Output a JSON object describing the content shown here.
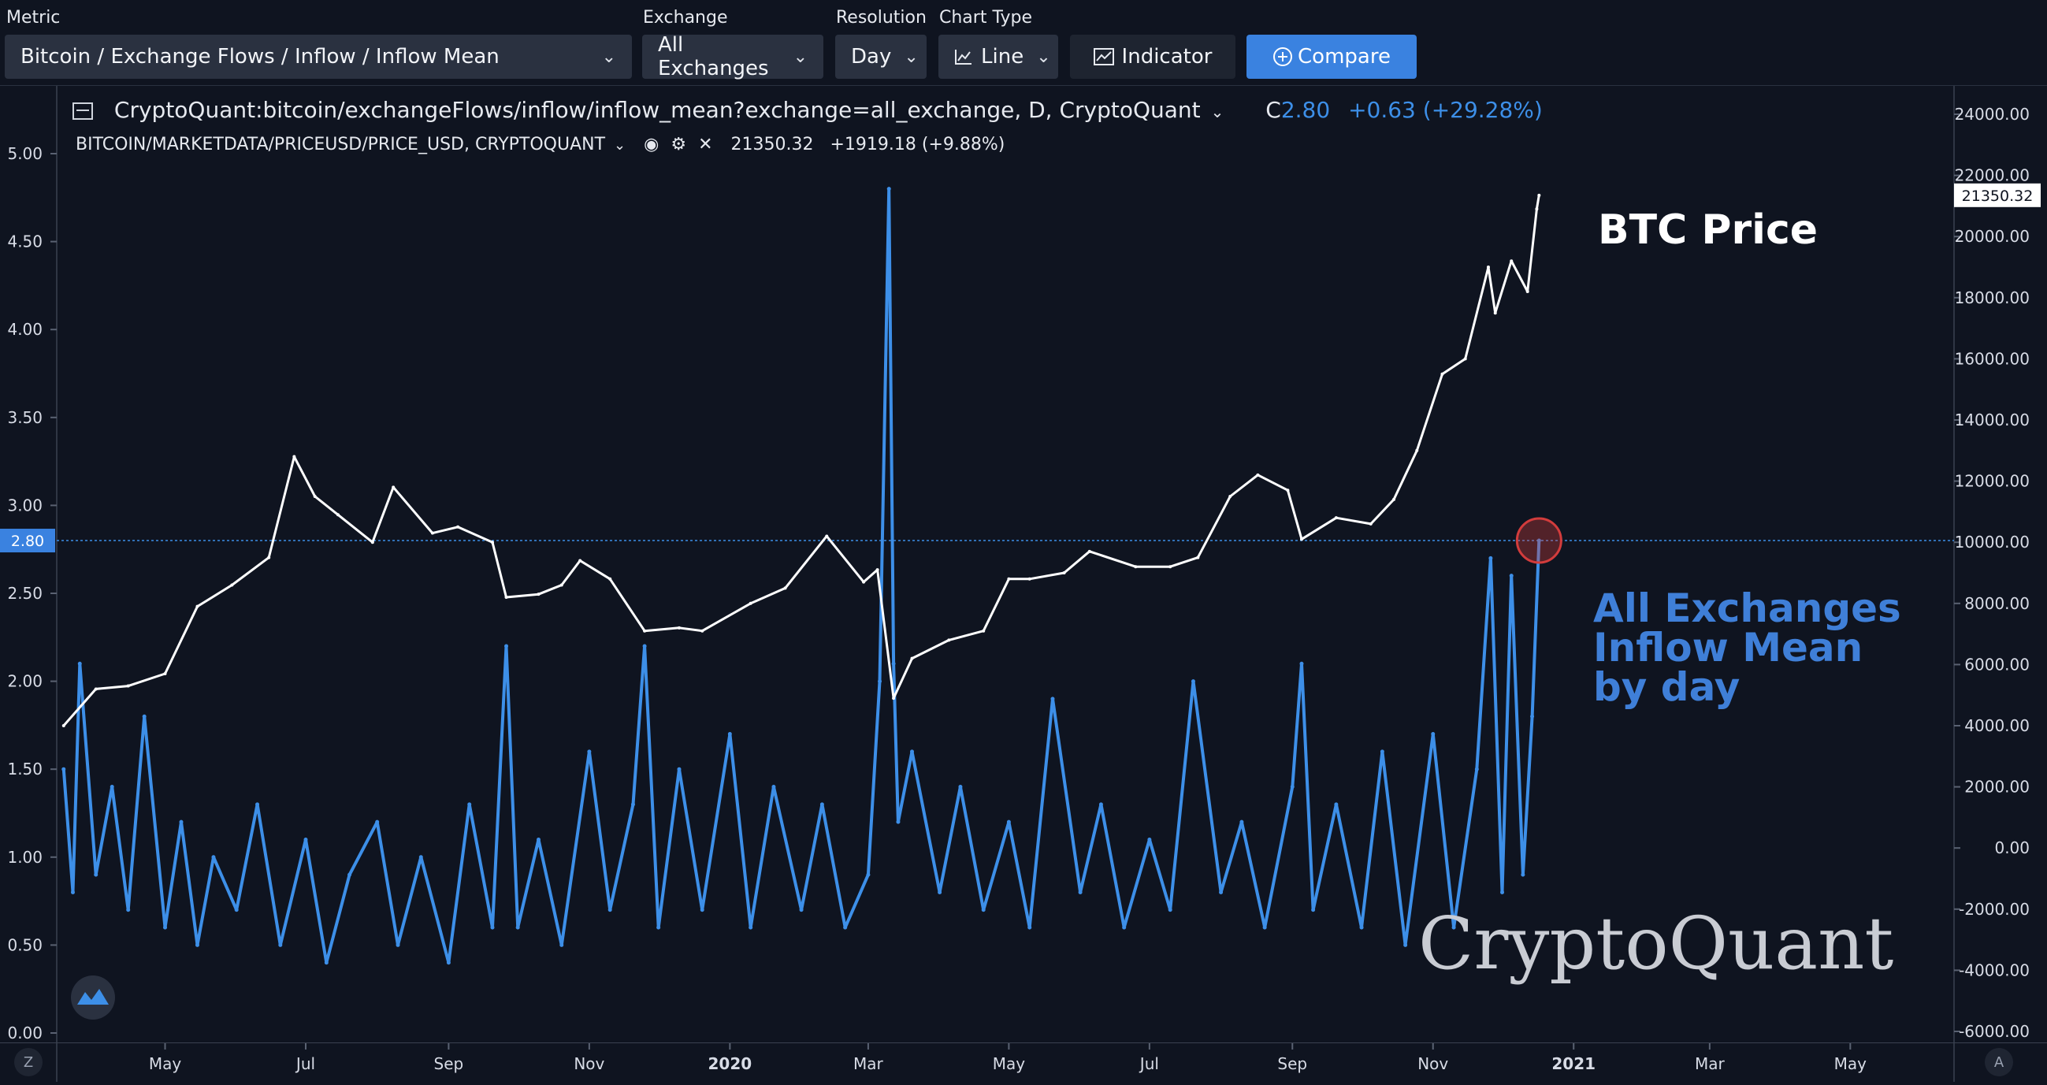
{
  "toolbar": {
    "metric_label": "Metric",
    "metric_value": "Bitcoin / Exchange Flows / Inflow / Inflow Mean",
    "exchange_label": "Exchange",
    "exchange_value": "All Exchanges",
    "resolution_label": "Resolution",
    "resolution_value": "Day",
    "chart_type_label": "Chart Type",
    "chart_type_value": "Line",
    "indicator_label": "Indicator",
    "compare_label": "Compare"
  },
  "legend": {
    "series1_title": "CryptoQuant:bitcoin/exchangeFlows/inflow/inflow_mean?exchange=all_exchange, D, CryptoQuant",
    "series1_close_prefix": "C",
    "series1_close": "2.80",
    "series1_change": "+0.63 (+29.28%)",
    "series2_title": "BITCOIN/MARKETDATA/PRICEUSD/PRICE_USD, CRYPTOQUANT",
    "series2_value": "21350.32",
    "series2_change": "+1919.18 (+9.88%)"
  },
  "annotations": {
    "btc_price": "BTC Price",
    "inflow_line1": "All Exchanges",
    "inflow_line2": "Inflow Mean",
    "inflow_line3": "by day",
    "watermark": "CryptoQuant"
  },
  "axis_badges": {
    "left_current": "2.80",
    "right_current": "21350.32"
  },
  "corner_buttons": {
    "left": "Z",
    "right": "A"
  },
  "colors": {
    "inflow": "#3d8fe8",
    "price": "#ffffff",
    "accent": "#3d8fe8",
    "background": "#0f1420",
    "annotation_blue": "#3f7fd8",
    "marker_red": "#d23c3c"
  },
  "chart_data": {
    "type": "line",
    "title": "",
    "left_axis": {
      "ticks": [
        0.0,
        0.5,
        1.0,
        1.5,
        2.0,
        2.5,
        3.0,
        3.5,
        4.0,
        4.5,
        5.0
      ],
      "range": [
        0,
        5.0
      ]
    },
    "right_axis": {
      "ticks": [
        -6000,
        -4000,
        -2000,
        0,
        2000,
        4000,
        6000,
        8000,
        10000,
        12000,
        14000,
        16000,
        18000,
        20000,
        22000,
        24000
      ],
      "range": [
        -6000,
        24000
      ]
    },
    "x_axis": {
      "range": [
        "2019-03-15",
        "2021-06-15"
      ],
      "tick_labels": [
        {
          "date": "2019-05-01",
          "label": "May",
          "bold": false
        },
        {
          "date": "2019-07-01",
          "label": "Jul",
          "bold": false
        },
        {
          "date": "2019-09-01",
          "label": "Sep",
          "bold": false
        },
        {
          "date": "2019-11-01",
          "label": "Nov",
          "bold": false
        },
        {
          "date": "2020-01-01",
          "label": "2020",
          "bold": true
        },
        {
          "date": "2020-03-01",
          "label": "Mar",
          "bold": false
        },
        {
          "date": "2020-05-01",
          "label": "May",
          "bold": false
        },
        {
          "date": "2020-07-01",
          "label": "Jul",
          "bold": false
        },
        {
          "date": "2020-09-01",
          "label": "Sep",
          "bold": false
        },
        {
          "date": "2020-11-01",
          "label": "Nov",
          "bold": false
        },
        {
          "date": "2021-01-01",
          "label": "2021",
          "bold": true
        },
        {
          "date": "2021-03-01",
          "label": "Mar",
          "bold": false
        },
        {
          "date": "2021-05-01",
          "label": "May",
          "bold": false
        }
      ]
    },
    "series": [
      {
        "name": "CryptoQuant:bitcoin/exchangeFlows/inflow/inflow_mean?exchange=all_exchange, D, CryptoQuant",
        "axis": "left",
        "x": [
          "2019-03-18",
          "2019-03-22",
          "2019-03-25",
          "2019-04-01",
          "2019-04-08",
          "2019-04-15",
          "2019-04-22",
          "2019-05-01",
          "2019-05-08",
          "2019-05-15",
          "2019-05-22",
          "2019-06-01",
          "2019-06-10",
          "2019-06-20",
          "2019-07-01",
          "2019-07-10",
          "2019-07-20",
          "2019-08-01",
          "2019-08-10",
          "2019-08-20",
          "2019-09-01",
          "2019-09-10",
          "2019-09-20",
          "2019-09-26",
          "2019-10-01",
          "2019-10-10",
          "2019-10-20",
          "2019-11-01",
          "2019-11-10",
          "2019-11-20",
          "2019-11-25",
          "2019-12-01",
          "2019-12-10",
          "2019-12-20",
          "2020-01-01",
          "2020-01-10",
          "2020-01-20",
          "2020-02-01",
          "2020-02-10",
          "2020-02-20",
          "2020-03-01",
          "2020-03-06",
          "2020-03-10",
          "2020-03-12",
          "2020-03-14",
          "2020-03-20",
          "2020-04-01",
          "2020-04-10",
          "2020-04-20",
          "2020-05-01",
          "2020-05-10",
          "2020-05-20",
          "2020-06-01",
          "2020-06-10",
          "2020-06-20",
          "2020-07-01",
          "2020-07-10",
          "2020-07-20",
          "2020-08-01",
          "2020-08-10",
          "2020-08-20",
          "2020-09-01",
          "2020-09-05",
          "2020-09-10",
          "2020-09-20",
          "2020-10-01",
          "2020-10-10",
          "2020-10-20",
          "2020-11-01",
          "2020-11-10",
          "2020-11-20",
          "2020-11-26",
          "2020-12-01",
          "2020-12-05",
          "2020-12-10",
          "2020-12-14",
          "2020-12-17"
        ],
        "values": [
          1.5,
          0.8,
          2.1,
          0.9,
          1.4,
          0.7,
          1.8,
          0.6,
          1.2,
          0.5,
          1.0,
          0.7,
          1.3,
          0.5,
          1.1,
          0.4,
          0.9,
          1.2,
          0.5,
          1.0,
          0.4,
          1.3,
          0.6,
          2.2,
          0.6,
          1.1,
          0.5,
          1.6,
          0.7,
          1.3,
          2.2,
          0.6,
          1.5,
          0.7,
          1.7,
          0.6,
          1.4,
          0.7,
          1.3,
          0.6,
          0.9,
          2.0,
          4.8,
          2.1,
          1.2,
          1.6,
          0.8,
          1.4,
          0.7,
          1.2,
          0.6,
          1.9,
          0.8,
          1.3,
          0.6,
          1.1,
          0.7,
          2.0,
          0.8,
          1.2,
          0.6,
          1.4,
          2.1,
          0.7,
          1.3,
          0.6,
          1.6,
          0.5,
          1.7,
          0.6,
          1.5,
          2.7,
          0.8,
          2.6,
          0.9,
          1.8,
          2.8
        ]
      },
      {
        "name": "BITCOIN/MARKETDATA/PRICEUSD/PRICE_USD, CRYPTOQUANT",
        "axis": "right",
        "x": [
          "2019-03-18",
          "2019-04-01",
          "2019-04-15",
          "2019-05-01",
          "2019-05-15",
          "2019-05-30",
          "2019-06-15",
          "2019-06-26",
          "2019-07-05",
          "2019-07-15",
          "2019-07-30",
          "2019-08-08",
          "2019-08-25",
          "2019-09-05",
          "2019-09-20",
          "2019-09-26",
          "2019-10-10",
          "2019-10-20",
          "2019-10-28",
          "2019-11-10",
          "2019-11-25",
          "2019-12-10",
          "2019-12-20",
          "2020-01-10",
          "2020-01-25",
          "2020-02-12",
          "2020-02-28",
          "2020-03-05",
          "2020-03-12",
          "2020-03-20",
          "2020-04-05",
          "2020-04-20",
          "2020-05-01",
          "2020-05-10",
          "2020-05-25",
          "2020-06-05",
          "2020-06-25",
          "2020-07-10",
          "2020-07-22",
          "2020-08-05",
          "2020-08-17",
          "2020-08-30",
          "2020-09-05",
          "2020-09-20",
          "2020-10-05",
          "2020-10-15",
          "2020-10-25",
          "2020-11-05",
          "2020-11-15",
          "2020-11-25",
          "2020-11-28",
          "2020-12-05",
          "2020-12-12",
          "2020-12-16",
          "2020-12-17"
        ],
        "values": [
          4000,
          5200,
          5300,
          5700,
          7900,
          8600,
          9500,
          12800,
          11500,
          10900,
          10000,
          11800,
          10300,
          10500,
          10000,
          8200,
          8300,
          8600,
          9400,
          8800,
          7100,
          7200,
          7100,
          8000,
          8500,
          10200,
          8700,
          9100,
          4900,
          6200,
          6800,
          7100,
          8800,
          8800,
          9000,
          9700,
          9200,
          9200,
          9500,
          11500,
          12200,
          11700,
          10100,
          10800,
          10600,
          11400,
          13000,
          15500,
          16000,
          19000,
          17500,
          19200,
          18200,
          20900,
          21350
        ]
      }
    ],
    "current": {
      "inflow_mean": 2.8,
      "price_usd": 21350.32
    }
  }
}
